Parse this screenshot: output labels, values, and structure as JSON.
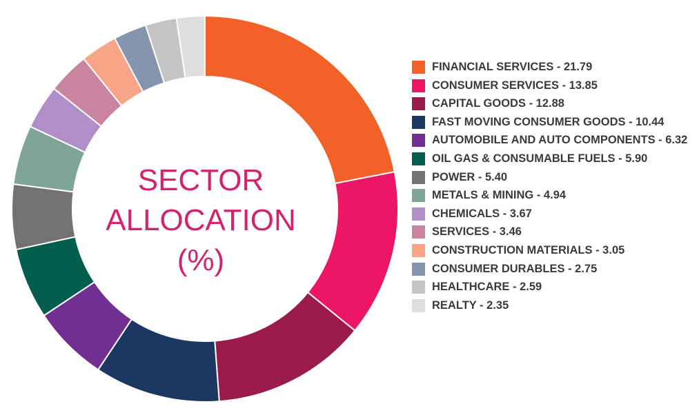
{
  "chart_data": {
    "type": "pie",
    "title": "SECTOR ALLOCATION (%)",
    "title_lines": [
      "SECTOR",
      "ALLOCATION",
      "(%)"
    ],
    "legend_position": "right",
    "slices": [
      {
        "label": "FINANCIAL SERVICES - 21.79",
        "name": "FINANCIAL SERVICES",
        "value": 21.79,
        "color": "#f26128"
      },
      {
        "label": "CONSUMER SERVICES - 13.85",
        "name": "CONSUMER SERVICES",
        "value": 13.85,
        "color": "#ed1566"
      },
      {
        "label": "CAPITAL GOODS - 12.88",
        "name": "CAPITAL GOODS",
        "value": 12.88,
        "color": "#9b1b4d"
      },
      {
        "label": "FAST MOVING CONSUMER GOODS - 10.44",
        "name": "FAST MOVING CONSUMER GOODS",
        "value": 10.44,
        "color": "#1c3862"
      },
      {
        "label": "AUTOMOBILE AND AUTO COMPONENTS - 6.32",
        "name": "AUTOMOBILE AND AUTO COMPONENTS",
        "value": 6.32,
        "color": "#702f91"
      },
      {
        "label": "OIL GAS & CONSUMABLE FUELS - 5.90",
        "name": "OIL GAS & CONSUMABLE FUELS",
        "value": 5.9,
        "color": "#035e4e"
      },
      {
        "label": "POWER - 5.40",
        "name": "POWER",
        "value": 5.4,
        "color": "#727272"
      },
      {
        "label": "METALS & MINING - 4.94",
        "name": "METALS & MINING",
        "value": 4.94,
        "color": "#7fa59a"
      },
      {
        "label": "CHEMICALS - 3.67",
        "name": "CHEMICALS",
        "value": 3.67,
        "color": "#b08fc8"
      },
      {
        "label": "SERVICES - 3.46",
        "name": "SERVICES",
        "value": 3.46,
        "color": "#c9859f"
      },
      {
        "label": "CONSTRUCTION MATERIALS - 3.05",
        "name": "CONSTRUCTION MATERIALS",
        "value": 3.05,
        "color": "#f8a587"
      },
      {
        "label": "CONSUMER DURABLES - 2.75",
        "name": "CONSUMER DURABLES",
        "value": 2.75,
        "color": "#8695ae"
      },
      {
        "label": "HEALTHCARE - 2.59",
        "name": "HEALTHCARE",
        "value": 2.59,
        "color": "#c4c4c4"
      },
      {
        "label": "REALTY - 2.35",
        "name": "REALTY",
        "value": 2.35,
        "color": "#dedede"
      }
    ],
    "title_color": "#d2236f",
    "grid": false
  }
}
